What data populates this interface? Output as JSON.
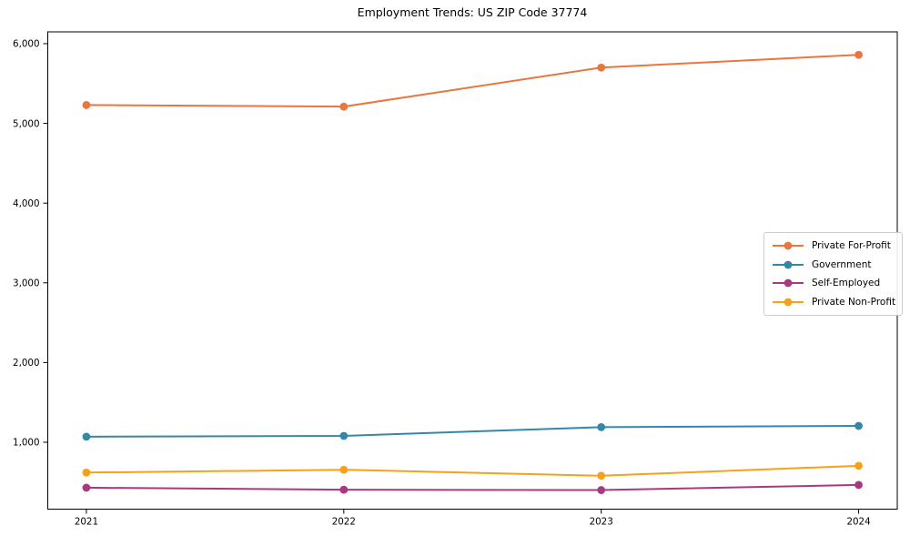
{
  "title": "Employment Trends: US ZIP Code 37774",
  "chart_data": {
    "type": "line",
    "title": "Employment Trends: US ZIP Code 37774",
    "xlabel": "",
    "ylabel": "",
    "x": [
      2021,
      2022,
      2023,
      2024
    ],
    "x_tick_labels": [
      "2021",
      "2022",
      "2023",
      "2024"
    ],
    "y_ticks": [
      1000,
      2000,
      3000,
      4000,
      5000,
      6000
    ],
    "y_tick_labels": [
      "1,000",
      "2,000",
      "3,000",
      "4,000",
      "5,000",
      "6,000"
    ],
    "xlim": [
      2020.85,
      2024.15
    ],
    "ylim": [
      161,
      6148
    ],
    "grid": false,
    "legend_position": "center-right",
    "axis_color": "#000000",
    "background_color": "#ffffff",
    "series": [
      {
        "name": "Private For-Profit",
        "color": "#e8763d",
        "values": [
          5230,
          5210,
          5700,
          5860
        ]
      },
      {
        "name": "Government",
        "color": "#3587a8",
        "values": [
          1070,
          1080,
          1190,
          1205
        ]
      },
      {
        "name": "Self-Employed",
        "color": "#a8397e",
        "values": [
          430,
          405,
          400,
          465
        ]
      },
      {
        "name": "Private Non-Profit",
        "color": "#f6a11c",
        "values": [
          620,
          655,
          580,
          705
        ]
      }
    ]
  }
}
